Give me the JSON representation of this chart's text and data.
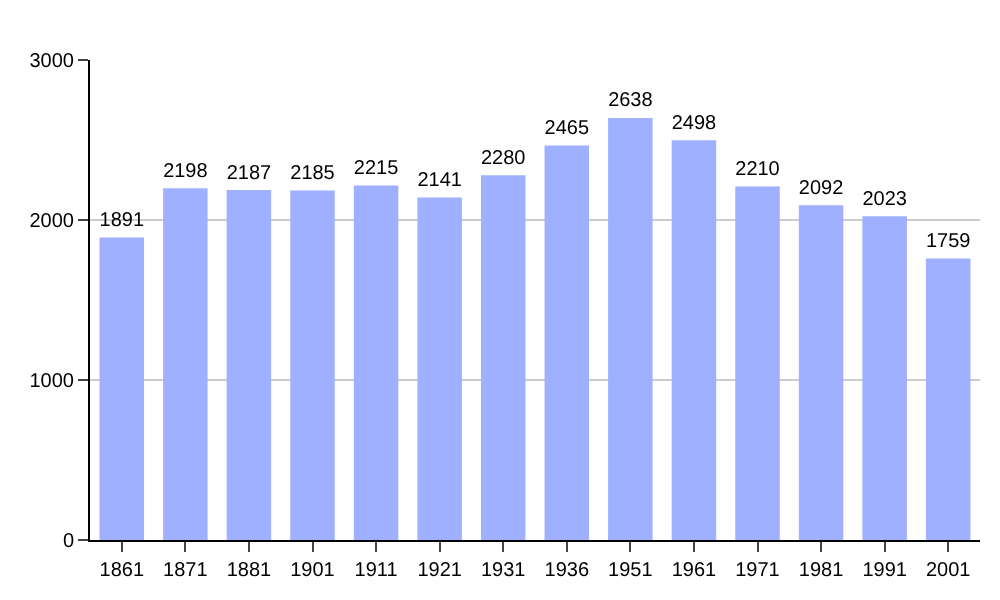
{
  "chart_data": {
    "type": "bar",
    "categories": [
      "1861",
      "1871",
      "1881",
      "1901",
      "1911",
      "1921",
      "1931",
      "1936",
      "1951",
      "1961",
      "1971",
      "1981",
      "1991",
      "2001"
    ],
    "values": [
      1891,
      2198,
      2187,
      2185,
      2215,
      2141,
      2280,
      2465,
      2638,
      2498,
      2210,
      2092,
      2023,
      1759
    ],
    "color": "#9eb0ff",
    "ylim": [
      0,
      3000
    ],
    "yticks": [
      0,
      1000,
      2000,
      3000
    ],
    "grid": "y",
    "data_labels": true
  }
}
